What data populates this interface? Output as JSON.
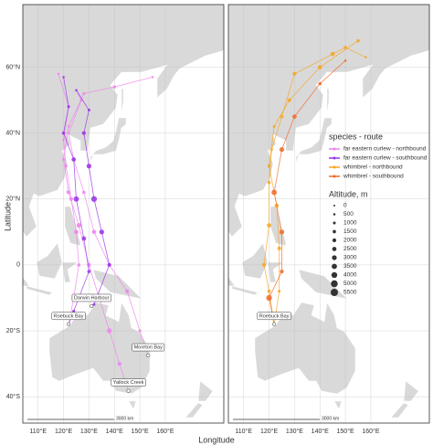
{
  "chart_data": {
    "type": "map",
    "xlabel": "Longitude",
    "ylabel": "Latitude",
    "xlim": [
      104,
      183
    ],
    "ylim": [
      -48,
      79
    ],
    "xticks": [
      {
        "value": 110,
        "label": "110°E"
      },
      {
        "value": 120,
        "label": "120°E"
      },
      {
        "value": 130,
        "label": "130°E"
      },
      {
        "value": 140,
        "label": "140°E"
      },
      {
        "value": 150,
        "label": "150°E"
      },
      {
        "value": 160,
        "label": "160°E"
      }
    ],
    "yticks": [
      {
        "value": 60,
        "label": "60°N"
      },
      {
        "value": 40,
        "label": "40°N"
      },
      {
        "value": 20,
        "label": "20°N"
      },
      0,
      {
        "value": -20,
        "label": "20°S"
      },
      {
        "value": -40,
        "label": "40°S"
      }
    ],
    "scale_label": "3000 km",
    "legend": {
      "title": "species - route",
      "entries": [
        {
          "label": "far eastern curlew - northbound",
          "color": "#ee82ee"
        },
        {
          "label": "far eastern curlew - southbound",
          "color": "#9a32e6"
        },
        {
          "label": "whimbrel - northbound",
          "color": "#f5a623"
        },
        {
          "label": "whimbrel - southbound",
          "color": "#ef6a2a"
        }
      ],
      "size_title": "Altitude, m",
      "sizes": [
        0,
        500,
        1000,
        1500,
        2000,
        2500,
        3000,
        3500,
        4000,
        5000,
        5500
      ]
    },
    "panels": [
      {
        "places": [
          {
            "label": "Darwin Harbour",
            "lon": 131,
            "lat": -12.5
          },
          {
            "label": "Roebuck Bay",
            "lon": 122,
            "lat": -18
          },
          {
            "label": "Moreton Bay",
            "lon": 153.3,
            "lat": -27.5
          },
          {
            "label": "Yallock Creek",
            "lon": 145.5,
            "lat": -38.2
          }
        ],
        "tracks": [
          {
            "color": "#ee82ee",
            "points": [
              [
                153.3,
                -27.5,
                0
              ],
              [
                150,
                -20,
                1000
              ],
              [
                145,
                -8,
                2000
              ],
              [
                138,
                0,
                1500
              ],
              [
                132,
                10,
                2500
              ],
              [
                128,
                22,
                1500
              ],
              [
                124,
                32,
                1000
              ],
              [
                122,
                40,
                500
              ],
              [
                127,
                50,
                1000
              ],
              [
                125,
                53,
                500
              ]
            ]
          },
          {
            "color": "#ee82ee",
            "points": [
              [
                145.5,
                -38.2,
                0
              ],
              [
                142,
                -30,
                2000
              ],
              [
                138,
                -20,
                3000
              ],
              [
                134,
                -10,
                2500
              ],
              [
                130,
                0,
                2000
              ],
              [
                126,
                12,
                3000
              ],
              [
                122,
                22,
                2000
              ],
              [
                120,
                32,
                1000
              ],
              [
                122,
                42,
                500
              ],
              [
                128,
                52,
                1000
              ],
              [
                140,
                54,
                1500
              ],
              [
                155,
                57,
                500
              ]
            ]
          },
          {
            "color": "#ee82ee",
            "points": [
              [
                122,
                -18,
                0
              ],
              [
                124,
                -10,
                2000
              ],
              [
                126,
                0,
                1500
              ],
              [
                125,
                10,
                2500
              ],
              [
                123,
                20,
                2000
              ],
              [
                121,
                30,
                1000
              ],
              [
                120,
                38,
                500
              ],
              [
                122,
                48,
                1000
              ],
              [
                118,
                58,
                500
              ]
            ]
          },
          {
            "color": "#9a32e6",
            "points": [
              [
                125,
                53,
                500
              ],
              [
                130,
                47,
                1000
              ],
              [
                128,
                40,
                2000
              ],
              [
                130,
                30,
                3000
              ],
              [
                132,
                20,
                4000
              ],
              [
                135,
                10,
                3000
              ],
              [
                138,
                0,
                2000
              ],
              [
                132,
                -12,
                1000
              ],
              [
                131,
                -12.5,
                500
              ]
            ]
          },
          {
            "color": "#9a32e6",
            "points": [
              [
                120,
                57,
                500
              ],
              [
                122,
                48,
                1000
              ],
              [
                120,
                40,
                1500
              ],
              [
                124,
                32,
                2500
              ],
              [
                125,
                20,
                3500
              ],
              [
                128,
                8,
                2500
              ],
              [
                130,
                -2,
                1500
              ],
              [
                124,
                -14,
                1000
              ],
              [
                122,
                -18,
                0
              ]
            ]
          }
        ]
      },
      {
        "places": [
          {
            "label": "Roebuck Bay",
            "lon": 122,
            "lat": -18
          }
        ],
        "tracks": [
          {
            "color": "#f5a623",
            "points": [
              [
                122,
                -18,
                0
              ],
              [
                120,
                -8,
                1500
              ],
              [
                118,
                0,
                2000
              ],
              [
                120,
                12,
                2500
              ],
              [
                120,
                25,
                1500
              ],
              [
                121,
                35,
                1000
              ],
              [
                125,
                45,
                1500
              ],
              [
                130,
                58,
                2000
              ],
              [
                145,
                64,
                2500
              ],
              [
                150,
                66,
                1500
              ],
              [
                158,
                63,
                500
              ]
            ]
          },
          {
            "color": "#f5a623",
            "points": [
              [
                122,
                -18,
                0
              ],
              [
                124,
                -8,
                1000
              ],
              [
                124,
                5,
                2000
              ],
              [
                123,
                18,
                2500
              ],
              [
                120,
                30,
                1500
              ],
              [
                122,
                42,
                1000
              ],
              [
                128,
                50,
                2000
              ],
              [
                140,
                60,
                2500
              ],
              [
                155,
                68,
                1500
              ]
            ]
          },
          {
            "color": "#ef6a2a",
            "points": [
              [
                150,
                62,
                500
              ],
              [
                140,
                55,
                1500
              ],
              [
                130,
                45,
                2500
              ],
              [
                125,
                35,
                3000
              ],
              [
                122,
                22,
                3500
              ],
              [
                125,
                10,
                3000
              ],
              [
                125,
                -2,
                2000
              ],
              [
                120,
                -10,
                4000
              ],
              [
                122,
                -18,
                1000
              ]
            ]
          }
        ]
      }
    ]
  }
}
